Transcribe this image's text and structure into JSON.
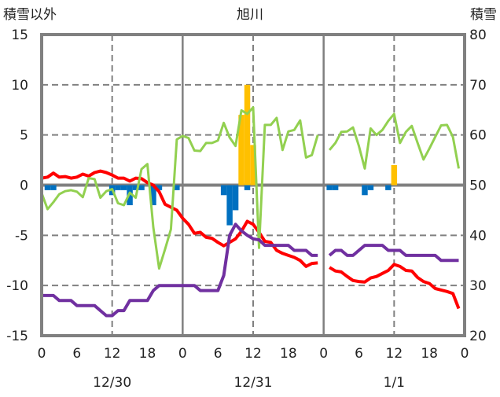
{
  "chart_data": {
    "type": "line",
    "title": "旭川",
    "ylabel": "積雪以外",
    "y2label": "積雪",
    "ylim": [
      -15,
      15
    ],
    "y2lim": [
      20,
      80
    ],
    "yticks": [
      15,
      10,
      5,
      0,
      -5,
      -10,
      -15
    ],
    "y2ticks": [
      80,
      70,
      60,
      50,
      40,
      30,
      20
    ],
    "xlabel": "",
    "x_hours": 72,
    "xticks": [
      {
        "hour": 0,
        "label": "0"
      },
      {
        "hour": 6,
        "label": "6"
      },
      {
        "hour": 12,
        "label": "12"
      },
      {
        "hour": 18,
        "label": "18"
      },
      {
        "hour": 24,
        "label": "0"
      },
      {
        "hour": 30,
        "label": "6"
      },
      {
        "hour": 36,
        "label": "12"
      },
      {
        "hour": 42,
        "label": "18"
      },
      {
        "hour": 48,
        "label": "0"
      },
      {
        "hour": 54,
        "label": "6"
      },
      {
        "hour": 60,
        "label": "12"
      },
      {
        "hour": 66,
        "label": "18"
      },
      {
        "hour": 72,
        "label": "0"
      }
    ],
    "date_labels": [
      {
        "hour": 12,
        "label": "12/30"
      },
      {
        "hour": 36,
        "label": "12/31"
      },
      {
        "hour": 60,
        "label": "1/1"
      }
    ],
    "grid": true,
    "colors": {
      "frame": "#808080",
      "temperature": "#FF0000",
      "green": "#92D050",
      "snow_depth": "#7030A0",
      "neg_bar": "#0070C0",
      "snowfall_bar": "#FFC000"
    },
    "series": [
      {
        "name": "red-line",
        "axis": "left",
        "color": "#FF0000",
        "values": [
          0.7,
          0.8,
          1.2,
          0.8,
          0.85,
          0.7,
          0.8,
          1.1,
          0.9,
          1.25,
          1.4,
          1.25,
          1.0,
          0.7,
          0.7,
          0.4,
          0.7,
          0.65,
          0.25,
          0,
          -0.65,
          -1.9,
          -2.2,
          -2.5,
          -3.3,
          -3.9,
          -4.8,
          -4.7,
          -5.2,
          -5.3,
          -5.7,
          -6.05,
          -5.7,
          -5.35,
          -4.6,
          -3.6,
          -3.9,
          -4.7,
          -5.6,
          -5.7,
          -6.5,
          -6.8,
          -7.0,
          -7.2,
          -7.5,
          -8.1,
          -7.8,
          -7.75,
          null,
          -8.2,
          -8.55,
          -8.65,
          -9.1,
          -9.5,
          -9.6,
          -9.65,
          -9.25,
          -9.1,
          -8.8,
          -8.5,
          -7.9,
          -8.1,
          -8.5,
          -8.55,
          -9.2,
          -9.6,
          -9.8,
          -10.3,
          -10.45,
          -10.6,
          -10.8,
          -12.3
        ]
      },
      {
        "name": "green-line",
        "axis": "left",
        "color": "#92D050",
        "values": [
          -0.8,
          -2.4,
          -1.7,
          -0.9,
          -0.6,
          -0.5,
          -0.65,
          -1.2,
          0.7,
          0.6,
          -1.25,
          -0.6,
          -0.4,
          -1.8,
          -2.0,
          -0.75,
          -1.25,
          1.6,
          2.1,
          -4.2,
          -8.3,
          -6.4,
          -4.4,
          4.55,
          4.9,
          4.7,
          3.45,
          3.4,
          4.2,
          4.2,
          4.45,
          6.2,
          4.75,
          3.9,
          7.45,
          7.1,
          7.75,
          -6.25,
          6.0,
          6.0,
          6.7,
          3.5,
          5.35,
          5.5,
          6.45,
          2.75,
          3.0,
          5.0,
          null,
          3.5,
          4.2,
          5.3,
          5.35,
          5.75,
          3.9,
          1.65,
          5.65,
          5.0,
          5.5,
          6.4,
          7.1,
          4.2,
          5.3,
          5.9,
          4.2,
          2.55,
          3.65,
          4.8,
          5.95,
          6.0,
          4.8,
          1.65
        ]
      },
      {
        "name": "snow-depth-line",
        "axis": "right",
        "color": "#7030A0",
        "values": [
          28,
          28,
          28,
          27,
          27,
          27,
          26,
          26,
          26,
          26,
          25,
          24,
          24,
          25,
          25,
          27,
          27,
          27,
          27,
          29,
          30,
          30,
          30,
          30,
          30,
          30,
          30,
          29,
          29,
          29,
          29,
          32,
          40,
          42.2,
          40.9,
          40,
          39.3,
          39.1,
          38,
          38,
          38,
          38,
          38,
          37,
          37,
          37,
          36,
          36,
          null,
          36,
          37,
          37,
          36,
          36,
          37,
          38,
          38,
          38,
          38,
          37,
          37,
          37,
          36,
          36,
          36,
          36,
          36,
          36,
          35,
          35,
          35,
          35
        ]
      },
      {
        "name": "blue-bars",
        "type": "bar",
        "axis": "left",
        "color": "#0070C0",
        "points": [
          {
            "hour": 1,
            "value": -0.5
          },
          {
            "hour": 2,
            "value": -0.5
          },
          {
            "hour": 12,
            "value": -1
          },
          {
            "hour": 13,
            "value": -0.5
          },
          {
            "hour": 14,
            "value": -0.5
          },
          {
            "hour": 15,
            "value": -2
          },
          {
            "hour": 16,
            "value": -0.5
          },
          {
            "hour": 17,
            "value": -0.5
          },
          {
            "hour": 19,
            "value": -2
          },
          {
            "hour": 20,
            "value": -0.5
          },
          {
            "hour": 23,
            "value": -0.5
          },
          {
            "hour": 31,
            "value": -1
          },
          {
            "hour": 32,
            "value": -4
          },
          {
            "hour": 33,
            "value": -2.5
          },
          {
            "hour": 35,
            "value": -0.5
          },
          {
            "hour": 49,
            "value": -0.5
          },
          {
            "hour": 50,
            "value": -0.5
          },
          {
            "hour": 55,
            "value": -1
          },
          {
            "hour": 56,
            "value": -0.5
          },
          {
            "hour": 59,
            "value": -0.5
          }
        ]
      },
      {
        "name": "orange-bars",
        "type": "bar",
        "axis": "left",
        "color": "#FFC000",
        "points": [
          {
            "hour": 34,
            "value": 7
          },
          {
            "hour": 35,
            "value": 10
          },
          {
            "hour": 36,
            "value": 4
          },
          {
            "hour": 60,
            "value": 2
          }
        ]
      }
    ]
  }
}
